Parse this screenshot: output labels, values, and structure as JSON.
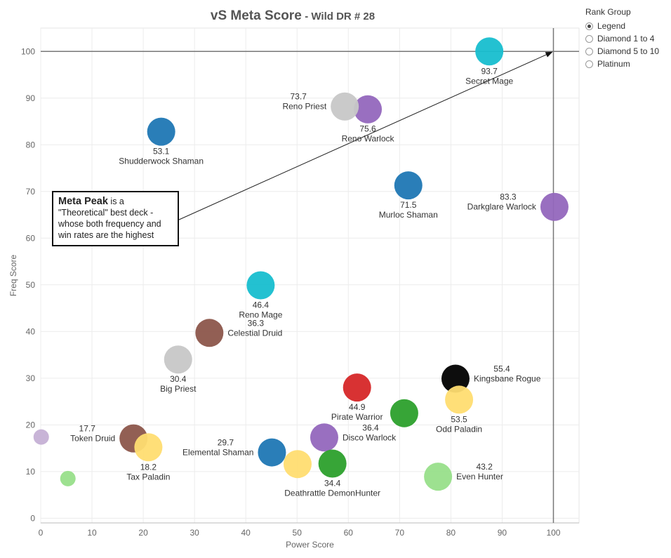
{
  "title": "vS Meta Score",
  "subtitle": "- Wild DR # 28",
  "legend": {
    "title": "Rank Group",
    "options": [
      {
        "label": "Legend",
        "selected": true
      },
      {
        "label": "Diamond 1 to 4",
        "selected": false
      },
      {
        "label": "Diamond 5 to 10",
        "selected": false
      },
      {
        "label": "Platinum",
        "selected": false
      }
    ]
  },
  "annotation": {
    "bold": "Meta Peak",
    "text": " is a \"Theoretical\" best deck - whose both frequency and win rates are the highest"
  },
  "chart_data": {
    "type": "scatter",
    "xlabel": "Power Score",
    "ylabel": "Freq Score",
    "xlim": [
      0,
      105
    ],
    "ylim": [
      -1,
      105
    ],
    "xticks": [
      0,
      10,
      20,
      30,
      40,
      50,
      60,
      70,
      80,
      90,
      100
    ],
    "yticks": [
      0,
      10,
      20,
      30,
      40,
      50,
      60,
      70,
      80,
      90,
      100
    ],
    "grid": true,
    "reference_lines": {
      "x": 100,
      "y": 100
    },
    "points": [
      {
        "name": "Secret Mage",
        "score": "93.7",
        "x": 87.5,
        "y": 100,
        "color": "#17becf",
        "label_pos": "below"
      },
      {
        "name": "Reno Warlock",
        "score": "75.6",
        "x": 63.8,
        "y": 87.6,
        "color": "#9467bd",
        "label_pos": "below"
      },
      {
        "name": "Reno Priest",
        "score": "73.7",
        "x": 59.3,
        "y": 88.2,
        "color": "#c7c7c7",
        "label_pos": "left"
      },
      {
        "name": "Shudderwock Shaman",
        "score": "53.1",
        "x": 23.5,
        "y": 82.8,
        "color": "#1f77b4",
        "label_pos": "below"
      },
      {
        "name": "Murloc Shaman",
        "score": "71.5",
        "x": 71.7,
        "y": 71.3,
        "color": "#1f77b4",
        "label_pos": "below"
      },
      {
        "name": "Darkglare Warlock",
        "score": "83.3",
        "x": 100.2,
        "y": 66.7,
        "color": "#9467bd",
        "label_pos": "left"
      },
      {
        "name": "Reno Mage",
        "score": "46.4",
        "x": 42.9,
        "y": 49.9,
        "color": "#17becf",
        "label_pos": "below"
      },
      {
        "name": "Celestial Druid",
        "score": "36.3",
        "x": 32.9,
        "y": 39.7,
        "color": "#8c564b",
        "label_pos": "right"
      },
      {
        "name": "Big Priest",
        "score": "30.4",
        "x": 26.8,
        "y": 34.0,
        "color": "#c7c7c7",
        "label_pos": "below"
      },
      {
        "name": "Kingsbane Rogue",
        "score": "55.4",
        "x": 80.9,
        "y": 29.9,
        "color": "#000000",
        "label_pos": "right"
      },
      {
        "name": "Pirate Warrior",
        "score": "44.9",
        "x": 61.7,
        "y": 28.0,
        "color": "#d62728",
        "label_pos": "below"
      },
      {
        "name": "Odd Paladin",
        "score": "53.5",
        "x": 81.6,
        "y": 25.4,
        "color": "#ffdd71",
        "label_pos": "below"
      },
      {
        "name": "",
        "score": "",
        "x": 70.9,
        "y": 22.5,
        "color": "#2ca02c",
        "label_pos": "none"
      },
      {
        "name": "Disco Warlock",
        "score": "36.4",
        "x": 55.3,
        "y": 17.3,
        "color": "#9467bd",
        "label_pos": "right"
      },
      {
        "name": "Token Druid",
        "score": "17.7",
        "x": 18.1,
        "y": 17.1,
        "color": "#8c564b",
        "label_pos": "left"
      },
      {
        "name": "Tax Paladin",
        "score": "18.2",
        "x": 21.0,
        "y": 15.2,
        "color": "#ffdd71",
        "label_pos": "below"
      },
      {
        "name": "Elemental Shaman",
        "score": "29.7",
        "x": 45.1,
        "y": 14.1,
        "color": "#1f77b4",
        "label_pos": "left"
      },
      {
        "name": "",
        "score": "",
        "x": 50.1,
        "y": 11.6,
        "color": "#ffdd71",
        "label_pos": "none"
      },
      {
        "name": "Deathrattle DemonHunter",
        "score": "34.4",
        "x": 56.9,
        "y": 11.7,
        "color": "#2ca02c",
        "label_pos": "below"
      },
      {
        "name": "Even Hunter",
        "score": "43.2",
        "x": 77.5,
        "y": 8.9,
        "color": "#98df8a",
        "label_pos": "right"
      },
      {
        "name": "",
        "score": "",
        "x": 0.1,
        "y": 17.4,
        "color": "#c5b0d5",
        "label_pos": "none"
      },
      {
        "name": "",
        "score": "",
        "x": 5.3,
        "y": 8.5,
        "color": "#98df8a",
        "label_pos": "none"
      }
    ]
  }
}
